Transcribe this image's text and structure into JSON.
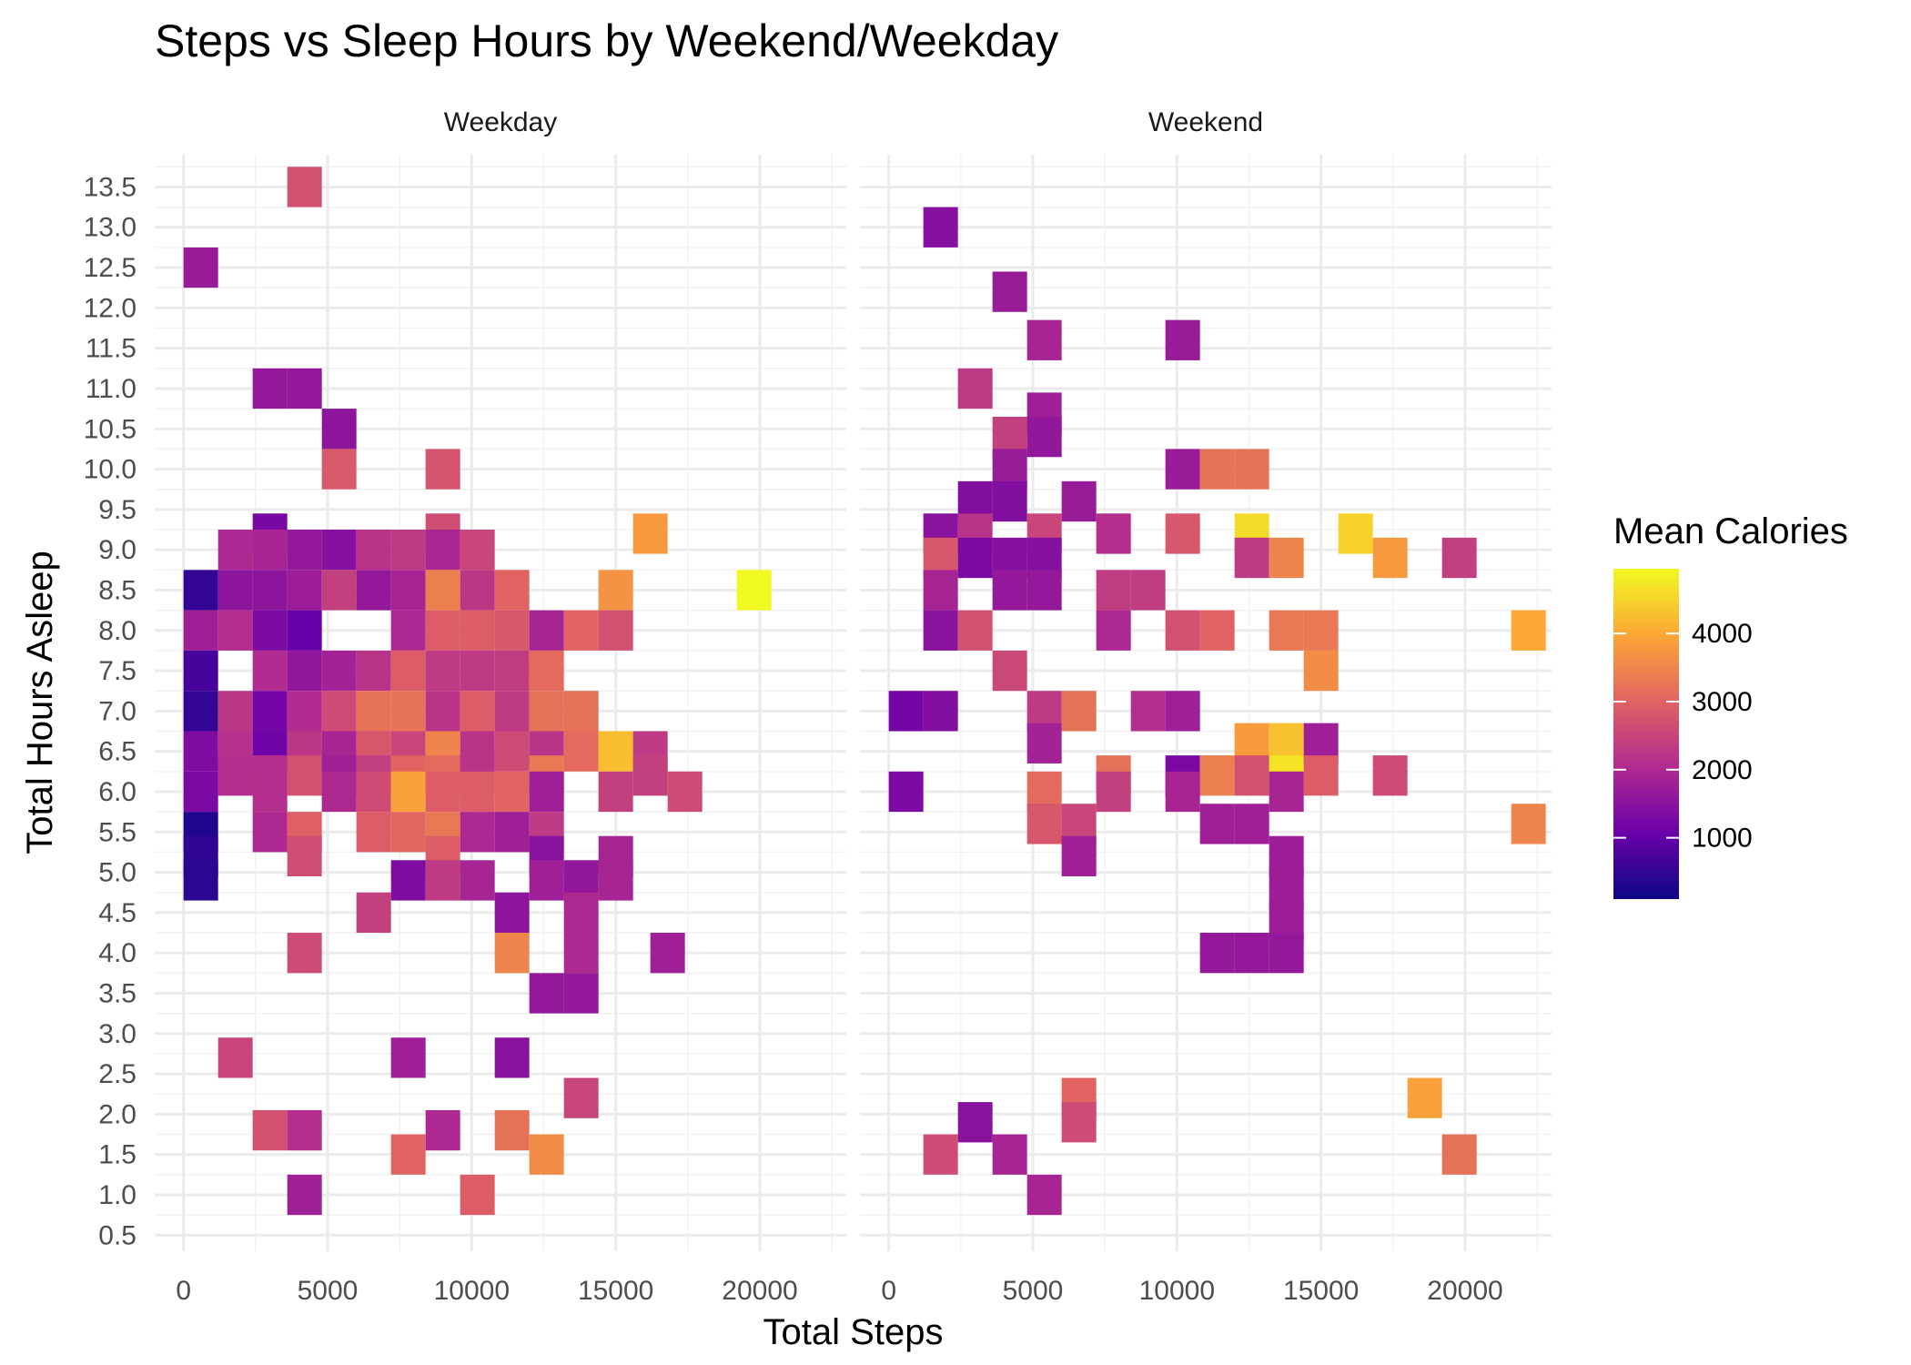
{
  "chart_data": {
    "type": "heatmap",
    "title": "Steps vs Sleep Hours by Weekend/Weekday",
    "xlabel": "Total Steps",
    "ylabel": "Total Hours Asleep",
    "facets": [
      "Weekday",
      "Weekend"
    ],
    "xlim": [
      -1000,
      23000
    ],
    "ylim": [
      0.3,
      13.9
    ],
    "x_ticks": [
      0,
      5000,
      10000,
      15000,
      20000
    ],
    "y_ticks": [
      0.5,
      1.0,
      1.5,
      2.0,
      2.5,
      3.0,
      3.5,
      4.0,
      4.5,
      5.0,
      5.5,
      6.0,
      6.5,
      7.0,
      7.5,
      8.0,
      8.5,
      9.0,
      9.5,
      10.0,
      10.5,
      11.0,
      11.5,
      12.0,
      12.5,
      13.0,
      13.5
    ],
    "y_tick_labels": [
      "0.5",
      "1.0",
      "1.5",
      "2.0",
      "2.5",
      "3.0",
      "3.5",
      "4.0",
      "4.5",
      "5.0",
      "5.5",
      "6.0",
      "6.5",
      "7.0",
      "7.5",
      "8.0",
      "8.5",
      "9.0",
      "9.5",
      "10.0",
      "10.5",
      "11.0",
      "11.5",
      "12.0",
      "12.5",
      "13.0",
      "13.5"
    ],
    "x_tick_labels": [
      "0",
      "5000",
      "10000",
      "15000",
      "20000"
    ],
    "bin_width_steps": 1200,
    "bin_height_hours": 0.5,
    "legend": {
      "title": "Mean Calories",
      "min": 100,
      "max": 4950,
      "ticks": [
        1000,
        2000,
        3000,
        4000
      ],
      "tick_labels": [
        "1000",
        "2000",
        "3000",
        "4000"
      ],
      "colormap": "plasma",
      "colors": [
        "#0d0887",
        "#6a00a8",
        "#b12a90",
        "#e16462",
        "#fca636",
        "#f0f921"
      ],
      "placement": "right"
    },
    "series": [
      {
        "name": "Weekday",
        "cells": [
          [
            4200,
            13.5,
            2700
          ],
          [
            600,
            12.5,
            1700
          ],
          [
            3000,
            11.0,
            1650
          ],
          [
            4200,
            11.0,
            1650
          ],
          [
            5400,
            10.5,
            1550
          ],
          [
            5400,
            10.0,
            2850
          ],
          [
            9000,
            10.0,
            2750
          ],
          [
            3000,
            9.2,
            1250
          ],
          [
            9000,
            9.2,
            2650
          ],
          [
            16200,
            9.2,
            3800
          ],
          [
            1800,
            9.0,
            2000
          ],
          [
            3000,
            9.0,
            1900
          ],
          [
            4200,
            9.0,
            1650
          ],
          [
            5400,
            9.0,
            1450
          ],
          [
            6600,
            9.0,
            2200
          ],
          [
            7800,
            9.0,
            2300
          ],
          [
            9000,
            9.0,
            1950
          ],
          [
            10200,
            9.0,
            2500
          ],
          [
            600,
            8.5,
            500
          ],
          [
            1800,
            8.5,
            1550
          ],
          [
            3000,
            8.5,
            1550
          ],
          [
            4200,
            8.5,
            1750
          ],
          [
            5400,
            8.5,
            2400
          ],
          [
            6600,
            8.5,
            1650
          ],
          [
            7800,
            8.5,
            1900
          ],
          [
            9000,
            8.5,
            3400
          ],
          [
            10200,
            8.5,
            2250
          ],
          [
            11400,
            8.5,
            3000
          ],
          [
            15000,
            8.5,
            3700
          ],
          [
            19800,
            8.5,
            4950
          ],
          [
            600,
            8.0,
            1800
          ],
          [
            1800,
            8.0,
            2100
          ],
          [
            3000,
            8.0,
            1300
          ],
          [
            4200,
            8.0,
            1050
          ],
          [
            7800,
            8.0,
            2000
          ],
          [
            9000,
            8.0,
            2900
          ],
          [
            10200,
            8.0,
            2900
          ],
          [
            11400,
            8.0,
            2800
          ],
          [
            12600,
            8.0,
            1900
          ],
          [
            13800,
            8.0,
            3000
          ],
          [
            15000,
            8.0,
            2700
          ],
          [
            600,
            7.5,
            700
          ],
          [
            3000,
            7.5,
            2050
          ],
          [
            4200,
            7.5,
            1600
          ],
          [
            5400,
            7.5,
            1850
          ],
          [
            6600,
            7.5,
            2200
          ],
          [
            7800,
            7.5,
            2900
          ],
          [
            9000,
            7.5,
            2300
          ],
          [
            10200,
            7.5,
            2300
          ],
          [
            11400,
            7.5,
            2350
          ],
          [
            12600,
            7.5,
            3100
          ],
          [
            600,
            7.0,
            500
          ],
          [
            1800,
            7.0,
            2250
          ],
          [
            3000,
            7.0,
            1200
          ],
          [
            4200,
            7.0,
            2050
          ],
          [
            5400,
            7.0,
            2600
          ],
          [
            6600,
            7.0,
            3200
          ],
          [
            7800,
            7.0,
            3250
          ],
          [
            9000,
            7.0,
            2200
          ],
          [
            10200,
            7.0,
            2900
          ],
          [
            11400,
            7.0,
            2300
          ],
          [
            12600,
            7.0,
            3200
          ],
          [
            13800,
            7.0,
            3200
          ],
          [
            600,
            6.5,
            1350
          ],
          [
            1800,
            6.5,
            2150
          ],
          [
            3000,
            6.5,
            1150
          ],
          [
            4200,
            6.5,
            2250
          ],
          [
            5400,
            6.5,
            1900
          ],
          [
            6600,
            6.5,
            2800
          ],
          [
            7800,
            6.5,
            2500
          ],
          [
            9000,
            6.5,
            3500
          ],
          [
            10200,
            6.5,
            2200
          ],
          [
            11400,
            6.5,
            2600
          ],
          [
            12600,
            6.5,
            2200
          ],
          [
            13800,
            6.5,
            3100
          ],
          [
            15000,
            6.5,
            4250
          ],
          [
            16200,
            6.5,
            2300
          ],
          [
            1800,
            6.2,
            2100
          ],
          [
            3000,
            6.2,
            2100
          ],
          [
            4200,
            6.2,
            2700
          ],
          [
            5400,
            6.2,
            1800
          ],
          [
            6600,
            6.2,
            2400
          ],
          [
            7800,
            6.2,
            3000
          ],
          [
            9000,
            6.2,
            3100
          ],
          [
            10200,
            6.2,
            2200
          ],
          [
            12600,
            6.2,
            3300
          ],
          [
            16200,
            6.2,
            2400
          ],
          [
            600,
            6.0,
            1300
          ],
          [
            3000,
            6.0,
            2100
          ],
          [
            5400,
            6.0,
            2000
          ],
          [
            6600,
            6.0,
            2600
          ],
          [
            7800,
            6.0,
            3900
          ],
          [
            9000,
            6.0,
            2900
          ],
          [
            10200,
            6.0,
            2900
          ],
          [
            11400,
            6.0,
            3000
          ],
          [
            12600,
            6.0,
            1800
          ],
          [
            15000,
            6.0,
            2400
          ],
          [
            17400,
            6.0,
            2600
          ],
          [
            600,
            5.5,
            300
          ],
          [
            3000,
            5.5,
            2000
          ],
          [
            4200,
            5.5,
            2950
          ],
          [
            6600,
            5.5,
            2900
          ],
          [
            7800,
            5.5,
            3050
          ],
          [
            9000,
            5.5,
            3300
          ],
          [
            10200,
            5.5,
            2000
          ],
          [
            11400,
            5.5,
            1800
          ],
          [
            12600,
            5.5,
            2300
          ],
          [
            600,
            5.2,
            450
          ],
          [
            4200,
            5.2,
            2650
          ],
          [
            9000,
            5.2,
            2900
          ],
          [
            12600,
            5.2,
            1500
          ],
          [
            15000,
            5.2,
            1900
          ],
          [
            600,
            4.9,
            400
          ],
          [
            7800,
            4.9,
            1350
          ],
          [
            9000,
            4.9,
            2300
          ],
          [
            10200,
            4.9,
            1900
          ],
          [
            12600,
            4.9,
            1800
          ],
          [
            13800,
            4.9,
            1600
          ],
          [
            15000,
            4.9,
            1900
          ],
          [
            6600,
            4.5,
            2400
          ],
          [
            11400,
            4.5,
            1550
          ],
          [
            13800,
            4.5,
            2000
          ],
          [
            4200,
            4.0,
            2600
          ],
          [
            11400,
            4.0,
            3500
          ],
          [
            13800,
            4.0,
            2000
          ],
          [
            16800,
            4.0,
            1800
          ],
          [
            12600,
            3.5,
            1650
          ],
          [
            13800,
            3.5,
            1650
          ],
          [
            1800,
            2.7,
            2500
          ],
          [
            7800,
            2.7,
            1800
          ],
          [
            11400,
            2.7,
            1500
          ],
          [
            13800,
            2.2,
            2500
          ],
          [
            3000,
            1.8,
            2700
          ],
          [
            4200,
            1.8,
            2100
          ],
          [
            9000,
            1.8,
            2000
          ],
          [
            11400,
            1.8,
            3200
          ],
          [
            7800,
            1.5,
            3000
          ],
          [
            12600,
            1.5,
            3600
          ],
          [
            4200,
            1.0,
            1800
          ],
          [
            10200,
            1.0,
            2900
          ]
        ]
      },
      {
        "name": "Weekend",
        "cells": [
          [
            1800,
            13.0,
            1450
          ],
          [
            4200,
            12.2,
            1700
          ],
          [
            5400,
            11.6,
            1900
          ],
          [
            10200,
            11.6,
            1700
          ],
          [
            3000,
            11.0,
            2300
          ],
          [
            5400,
            10.7,
            1800
          ],
          [
            4200,
            10.4,
            2400
          ],
          [
            5400,
            10.4,
            1600
          ],
          [
            4200,
            10.0,
            1700
          ],
          [
            10200,
            10.0,
            1700
          ],
          [
            11400,
            10.0,
            3250
          ],
          [
            12600,
            10.0,
            3250
          ],
          [
            3000,
            9.6,
            1400
          ],
          [
            4200,
            9.6,
            1400
          ],
          [
            6600,
            9.6,
            1700
          ],
          [
            1800,
            9.2,
            1500
          ],
          [
            3000,
            9.2,
            2200
          ],
          [
            5400,
            9.2,
            2500
          ],
          [
            7800,
            9.2,
            2100
          ],
          [
            10200,
            9.2,
            2800
          ],
          [
            12600,
            9.2,
            4600
          ],
          [
            16200,
            9.2,
            4500
          ],
          [
            1800,
            8.9,
            2800
          ],
          [
            3000,
            8.9,
            1300
          ],
          [
            4200,
            8.9,
            1450
          ],
          [
            5400,
            8.9,
            1450
          ],
          [
            12600,
            8.9,
            2300
          ],
          [
            13800,
            8.9,
            3500
          ],
          [
            17400,
            8.9,
            3800
          ],
          [
            19800,
            8.9,
            2400
          ],
          [
            1800,
            8.5,
            1900
          ],
          [
            4200,
            8.5,
            1650
          ],
          [
            5400,
            8.5,
            1650
          ],
          [
            7800,
            8.5,
            2350
          ],
          [
            9000,
            8.5,
            2350
          ],
          [
            1800,
            8.0,
            1500
          ],
          [
            3000,
            8.0,
            2700
          ],
          [
            7800,
            8.0,
            2000
          ],
          [
            10200,
            8.0,
            2700
          ],
          [
            11400,
            8.0,
            3000
          ],
          [
            13800,
            8.0,
            3300
          ],
          [
            15000,
            8.0,
            3300
          ],
          [
            22200,
            8.0,
            4000
          ],
          [
            4200,
            7.5,
            2550
          ],
          [
            15000,
            7.5,
            3600
          ],
          [
            600,
            7.0,
            1200
          ],
          [
            1800,
            7.0,
            1400
          ],
          [
            5400,
            7.0,
            2300
          ],
          [
            6600,
            7.0,
            3200
          ],
          [
            9000,
            7.0,
            2100
          ],
          [
            10200,
            7.0,
            1800
          ],
          [
            5400,
            6.6,
            1850
          ],
          [
            12600,
            6.6,
            3800
          ],
          [
            13800,
            6.6,
            4300
          ],
          [
            15000,
            6.6,
            1800
          ],
          [
            7800,
            6.2,
            3200
          ],
          [
            10200,
            6.2,
            1300
          ],
          [
            11400,
            6.2,
            3400
          ],
          [
            12600,
            6.2,
            2700
          ],
          [
            13800,
            6.2,
            4700
          ],
          [
            15000,
            6.2,
            2900
          ],
          [
            17400,
            6.2,
            2600
          ],
          [
            600,
            6.0,
            1300
          ],
          [
            5400,
            6.0,
            3100
          ],
          [
            7800,
            6.0,
            2400
          ],
          [
            10200,
            6.0,
            1900
          ],
          [
            13800,
            6.0,
            1900
          ],
          [
            5400,
            5.6,
            2800
          ],
          [
            6600,
            5.6,
            2500
          ],
          [
            11400,
            5.6,
            1800
          ],
          [
            12600,
            5.6,
            1800
          ],
          [
            22200,
            5.6,
            3500
          ],
          [
            6600,
            5.2,
            1800
          ],
          [
            13800,
            5.2,
            1750
          ],
          [
            13800,
            4.8,
            1750
          ],
          [
            13800,
            4.4,
            1750
          ],
          [
            11400,
            4.0,
            1650
          ],
          [
            12600,
            4.0,
            1650
          ],
          [
            13800,
            4.0,
            1650
          ],
          [
            18600,
            2.2,
            3900
          ],
          [
            6600,
            2.2,
            3000
          ],
          [
            3000,
            1.9,
            1500
          ],
          [
            6600,
            1.9,
            2600
          ],
          [
            1800,
            1.5,
            2600
          ],
          [
            4200,
            1.5,
            1900
          ],
          [
            19800,
            1.5,
            3200
          ],
          [
            5400,
            1.0,
            1900
          ]
        ]
      }
    ]
  }
}
